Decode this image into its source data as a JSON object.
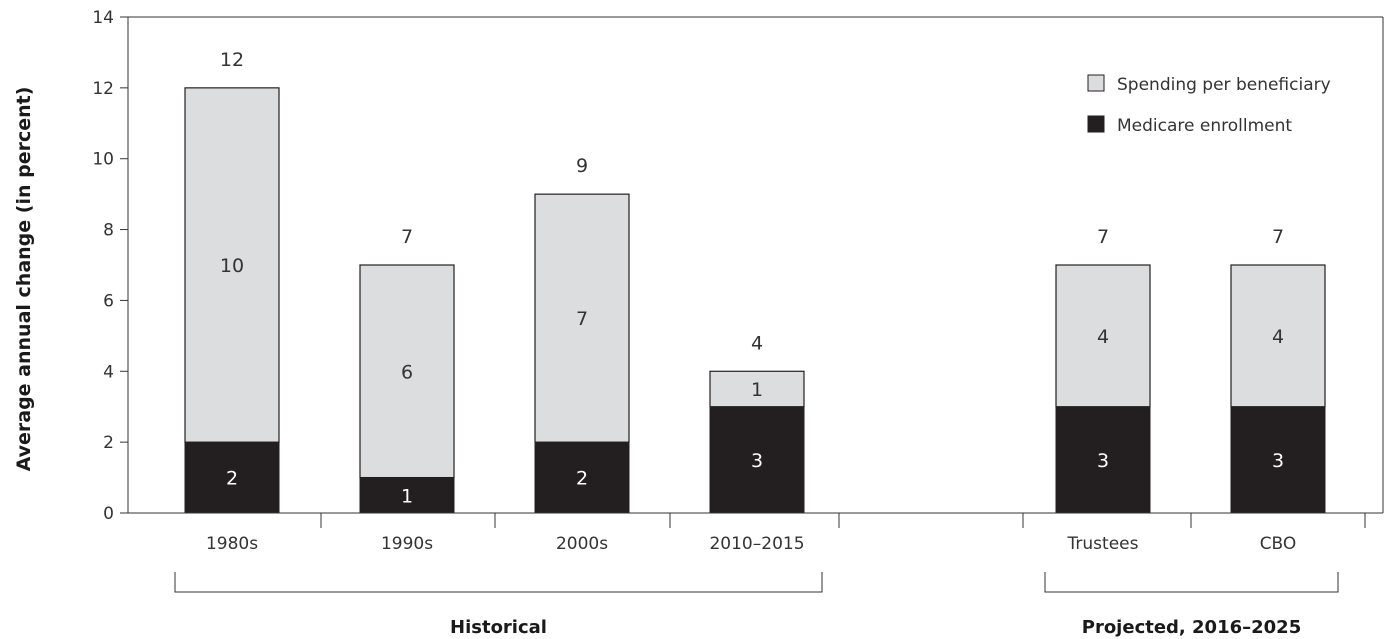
{
  "chart_data": {
    "type": "bar",
    "stacked": true,
    "ylabel": "Average annual change (in percent)",
    "ylim": [
      0,
      14
    ],
    "yticks": [
      "0",
      "2",
      "4",
      "6",
      "8",
      "10",
      "12",
      "14"
    ],
    "categories": [
      "1980s",
      "1990s",
      "2000s",
      "2010–2015",
      "Trustees",
      "CBO"
    ],
    "series": [
      {
        "name": "Medicare enrollment",
        "color": "#231f20",
        "values": [
          2,
          1,
          2,
          3,
          3,
          3
        ]
      },
      {
        "name": "Spending per beneficiary",
        "color": "#dcdddf",
        "values": [
          10,
          6,
          7,
          1,
          4,
          4
        ]
      }
    ],
    "totals": [
      12,
      7,
      9,
      4,
      7,
      7
    ],
    "legend": {
      "position": "top-right",
      "items": [
        "Spending per beneficiary",
        "Medicare enrollment"
      ]
    },
    "groups": [
      {
        "label": "Historical",
        "categories": [
          "1980s",
          "1990s",
          "2000s",
          "2010–2015"
        ]
      },
      {
        "label": "Projected, 2016–2025",
        "categories": [
          "Trustees",
          "CBO"
        ]
      }
    ],
    "grid": false
  }
}
